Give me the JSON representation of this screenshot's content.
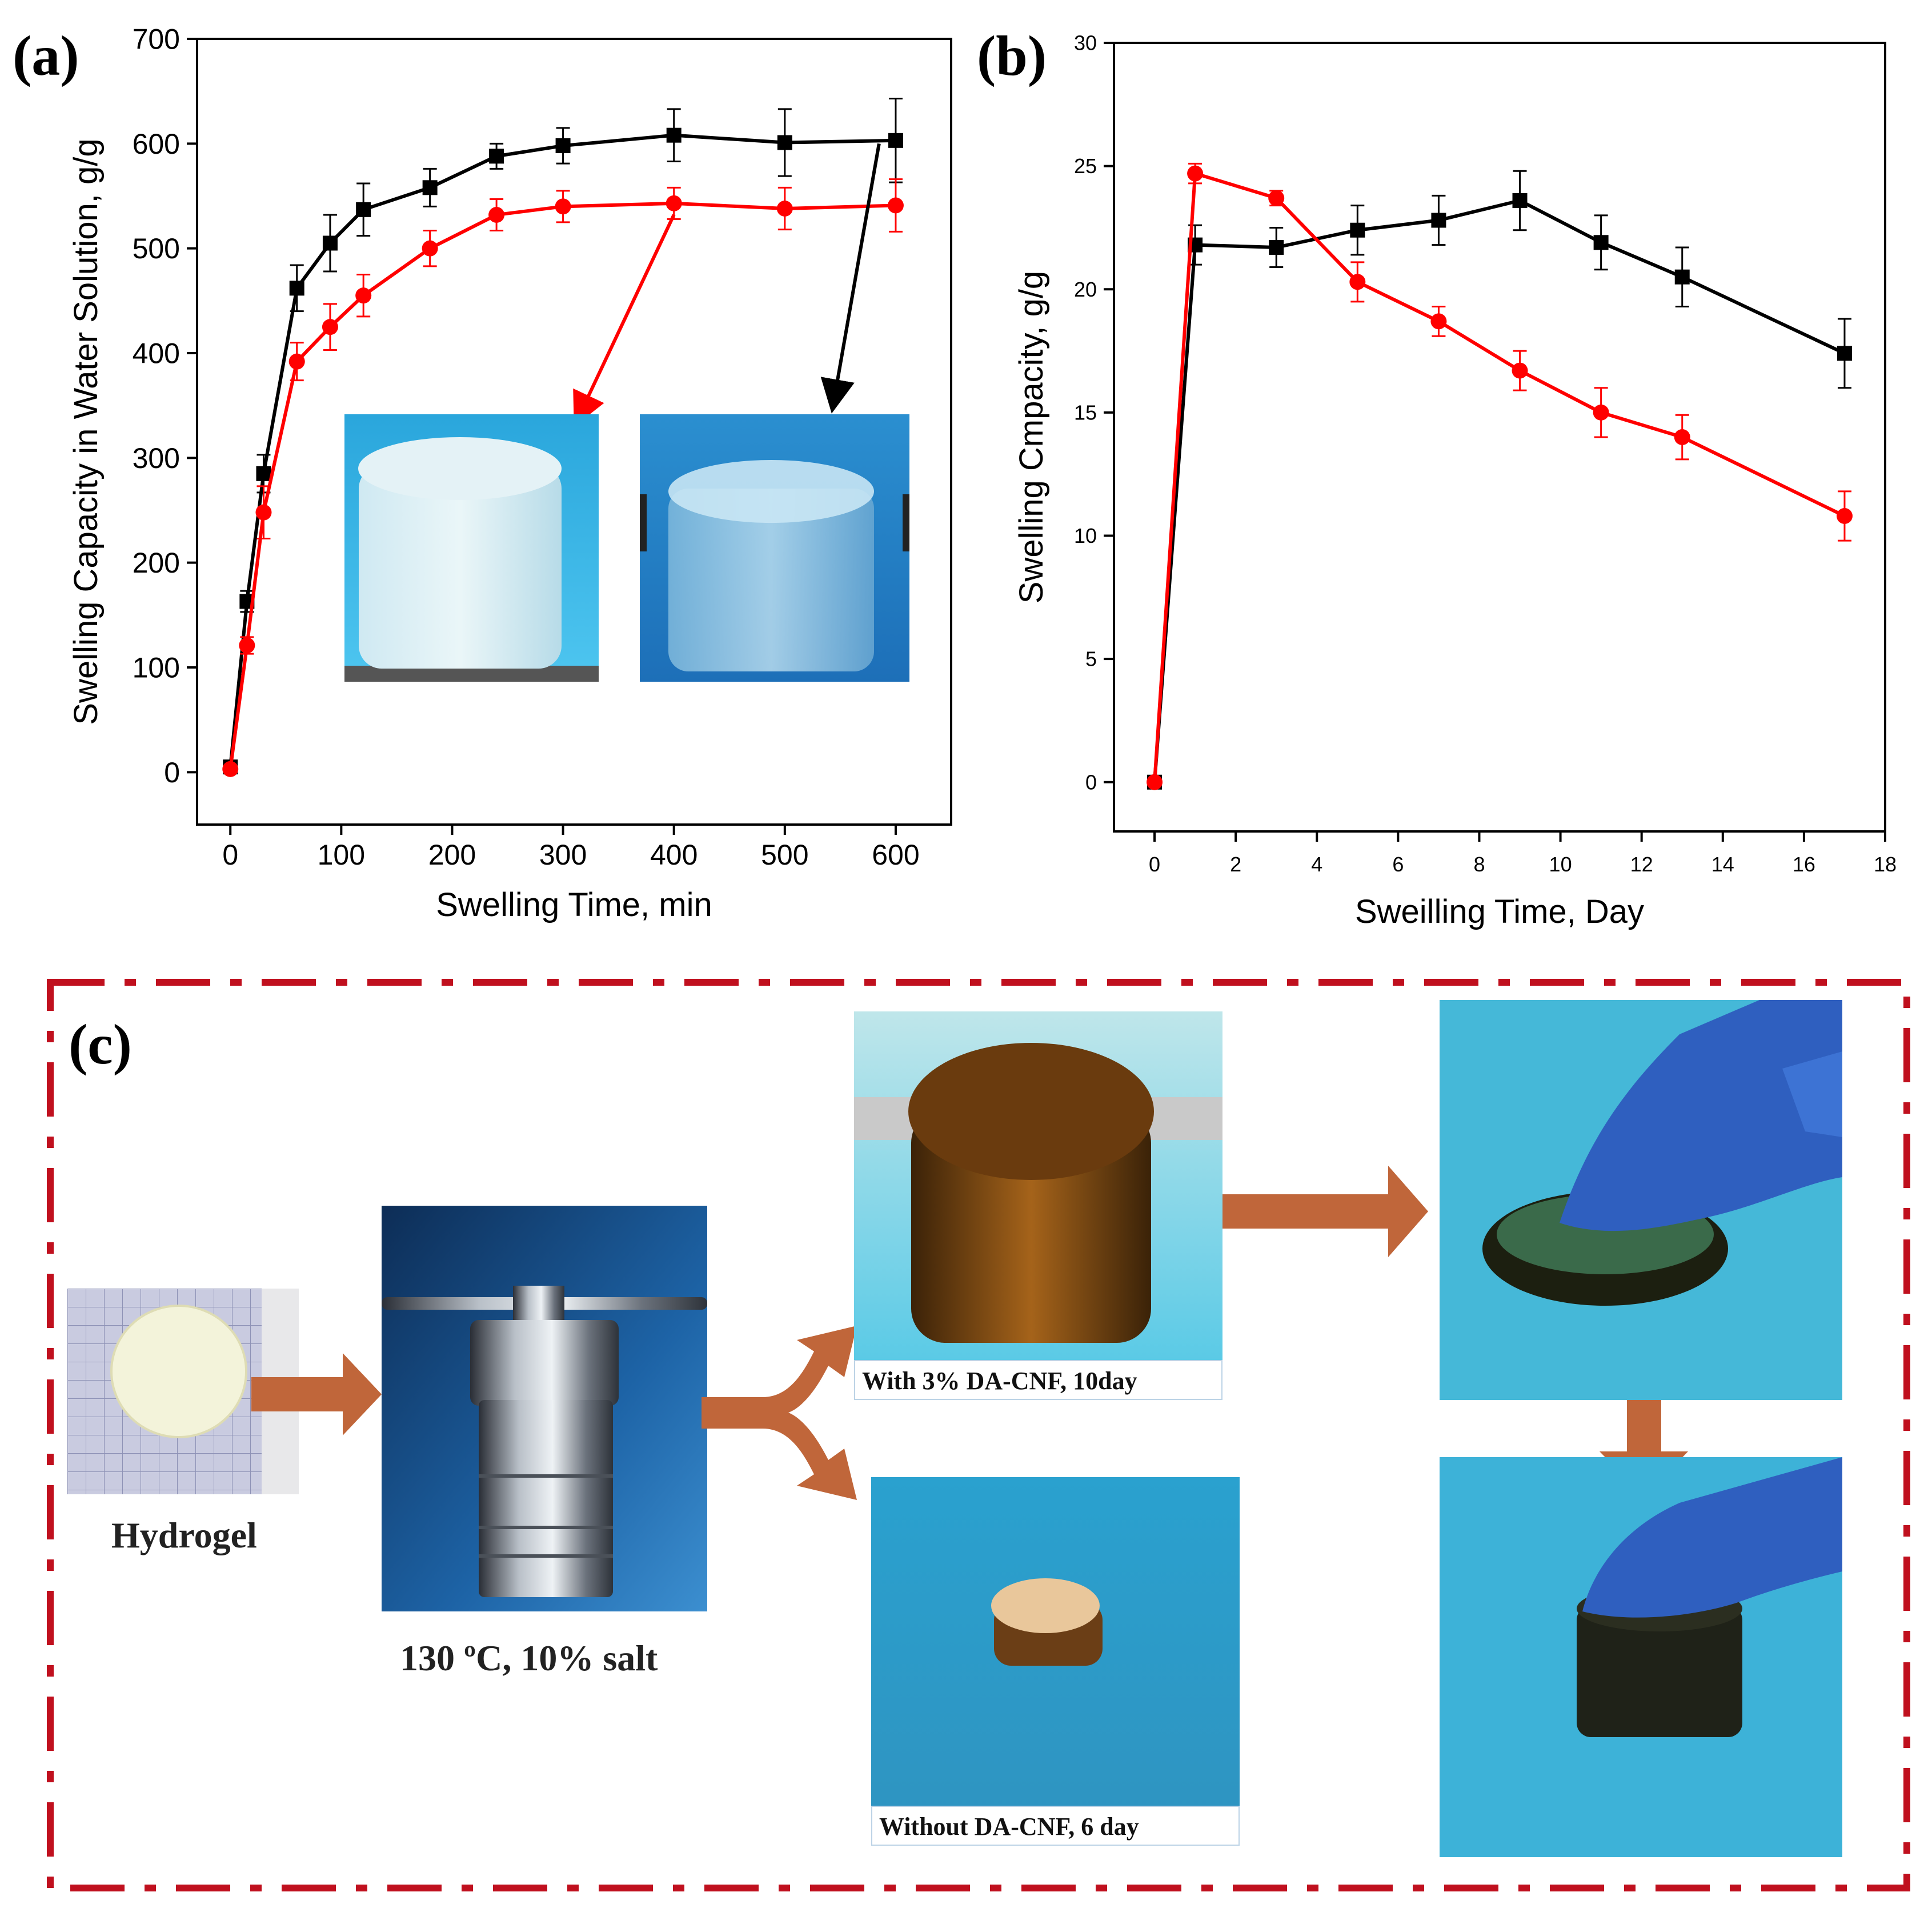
{
  "colors": {
    "black_series": "#000000",
    "red_series": "#ff0000",
    "dash_border": "#c0101e",
    "process_arrow": "#c0663a"
  },
  "chart_data": [
    {
      "panel": "(a)",
      "type": "line",
      "xlabel": "Swelling Time, min",
      "ylabel": "Swelling Capacity in Water Solution, g/g",
      "xlim": [
        -30,
        650
      ],
      "ylim": [
        -50,
        700
      ],
      "xticks": [
        0,
        100,
        200,
        300,
        400,
        500,
        600
      ],
      "yticks": [
        0,
        100,
        200,
        300,
        400,
        500,
        600,
        700
      ],
      "series": [
        {
          "name": "black",
          "color": "#000000",
          "marker": "square",
          "x": [
            0,
            15,
            30,
            60,
            90,
            120,
            180,
            240,
            300,
            400,
            500,
            600
          ],
          "y": [
            5,
            163,
            285,
            462,
            505,
            537,
            558,
            588,
            598,
            608,
            601,
            603
          ],
          "err": [
            0,
            10,
            18,
            22,
            27,
            25,
            18,
            12,
            17,
            25,
            32,
            40
          ]
        },
        {
          "name": "red",
          "color": "#ff0000",
          "marker": "circle",
          "x": [
            0,
            15,
            30,
            60,
            90,
            120,
            180,
            240,
            300,
            400,
            500,
            600
          ],
          "y": [
            3,
            121,
            248,
            392,
            425,
            455,
            500,
            532,
            540,
            543,
            538,
            541
          ],
          "err": [
            0,
            8,
            25,
            18,
            22,
            20,
            17,
            15,
            15,
            15,
            20,
            25
          ]
        }
      ],
      "inset_arrows": [
        {
          "color": "#ff0000",
          "from_point": [
            400,
            543
          ],
          "points_to": "left-inset"
        },
        {
          "color": "#000000",
          "from_point": [
            585,
            600
          ],
          "points_to": "right-inset"
        }
      ]
    },
    {
      "panel": "(b)",
      "type": "line",
      "xlabel": "Sweilling Time, Day",
      "ylabel": "Swelling Cmpacity, g/g",
      "xlim": [
        -1,
        18
      ],
      "ylim": [
        -2,
        30
      ],
      "xticks": [
        0,
        2,
        4,
        6,
        8,
        10,
        12,
        14,
        16,
        18
      ],
      "yticks": [
        0,
        5,
        10,
        15,
        20,
        25,
        30
      ],
      "series": [
        {
          "name": "black",
          "color": "#000000",
          "marker": "square",
          "x": [
            0,
            1,
            3,
            5,
            7,
            9,
            11,
            13,
            17
          ],
          "y": [
            0,
            21.8,
            21.7,
            22.4,
            22.8,
            23.6,
            21.9,
            20.5,
            17.4
          ],
          "err": [
            0,
            0.8,
            0.8,
            1.0,
            1.0,
            1.2,
            1.1,
            1.2,
            1.4
          ]
        },
        {
          "name": "red",
          "color": "#ff0000",
          "marker": "circle",
          "x": [
            0,
            1,
            3,
            5,
            7,
            9,
            11,
            13,
            17
          ],
          "y": [
            0,
            24.7,
            23.7,
            20.3,
            18.7,
            16.7,
            15.0,
            14.0,
            10.8
          ],
          "err": [
            0,
            0.4,
            0.3,
            0.8,
            0.6,
            0.8,
            1.0,
            0.9,
            1.0
          ]
        }
      ]
    }
  ],
  "panel_c": {
    "label": "(c)",
    "hydrogel_caption": "Hydrogel",
    "condition_caption": "130 ºC, 10% salt",
    "with_caption": "With 3% DA-CNF, 10day",
    "without_caption": "Without DA-CNF, 6 day"
  }
}
